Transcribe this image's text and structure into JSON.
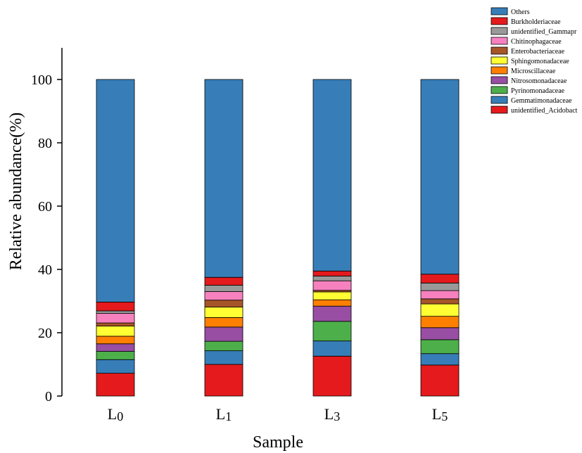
{
  "chart_data": {
    "type": "bar",
    "stacked": true,
    "title": "",
    "xlabel": "Sample",
    "ylabel": "Relative abundance(%)",
    "ylim": [
      0,
      110
    ],
    "yticks": [
      0,
      20,
      40,
      60,
      80,
      100
    ],
    "grid": false,
    "legend_position": "top-right",
    "categories": [
      "L0",
      "L1",
      "L3",
      "L5"
    ],
    "category_labels": [
      {
        "base": "L",
        "sub": "0"
      },
      {
        "base": "L",
        "sub": "1"
      },
      {
        "base": "L",
        "sub": "3"
      },
      {
        "base": "L",
        "sub": "5"
      }
    ],
    "series": [
      {
        "name": "unidentified_Acidobact",
        "color": "#e41a1c",
        "values": [
          7.2,
          10.0,
          12.6,
          9.8
        ]
      },
      {
        "name": "Gemmatimonadaceae",
        "color": "#377eb8",
        "values": [
          4.3,
          4.3,
          4.8,
          3.6
        ]
      },
      {
        "name": "Pyrinomonadaceae",
        "color": "#4daf4a",
        "values": [
          2.6,
          3.0,
          6.2,
          4.4
        ]
      },
      {
        "name": "Nitrosomonadaceae",
        "color": "#984ea3",
        "values": [
          2.4,
          4.5,
          4.8,
          3.8
        ]
      },
      {
        "name": "Microscillaceae",
        "color": "#ff7f00",
        "values": [
          2.4,
          3.0,
          2.0,
          3.6
        ]
      },
      {
        "name": "Sphingomonadaceae",
        "color": "#ffff33",
        "values": [
          3.2,
          3.3,
          2.5,
          3.9
        ]
      },
      {
        "name": "Enterobacteriaceae",
        "color": "#a65628",
        "values": [
          1.0,
          2.2,
          0.5,
          1.6
        ]
      },
      {
        "name": "Chitinophagaceae",
        "color": "#f781bf",
        "values": [
          3.0,
          2.7,
          3.0,
          2.6
        ]
      },
      {
        "name": "unidentified_Gammapr",
        "color": "#999999",
        "values": [
          0.8,
          2.0,
          1.5,
          2.4
        ]
      },
      {
        "name": "Burkholderiaceae",
        "color": "#e41a1c",
        "values": [
          2.8,
          2.5,
          1.6,
          2.8
        ]
      },
      {
        "name": "Others",
        "color": "#377eb8",
        "values": [
          70.3,
          62.5,
          60.5,
          61.5
        ]
      }
    ]
  }
}
